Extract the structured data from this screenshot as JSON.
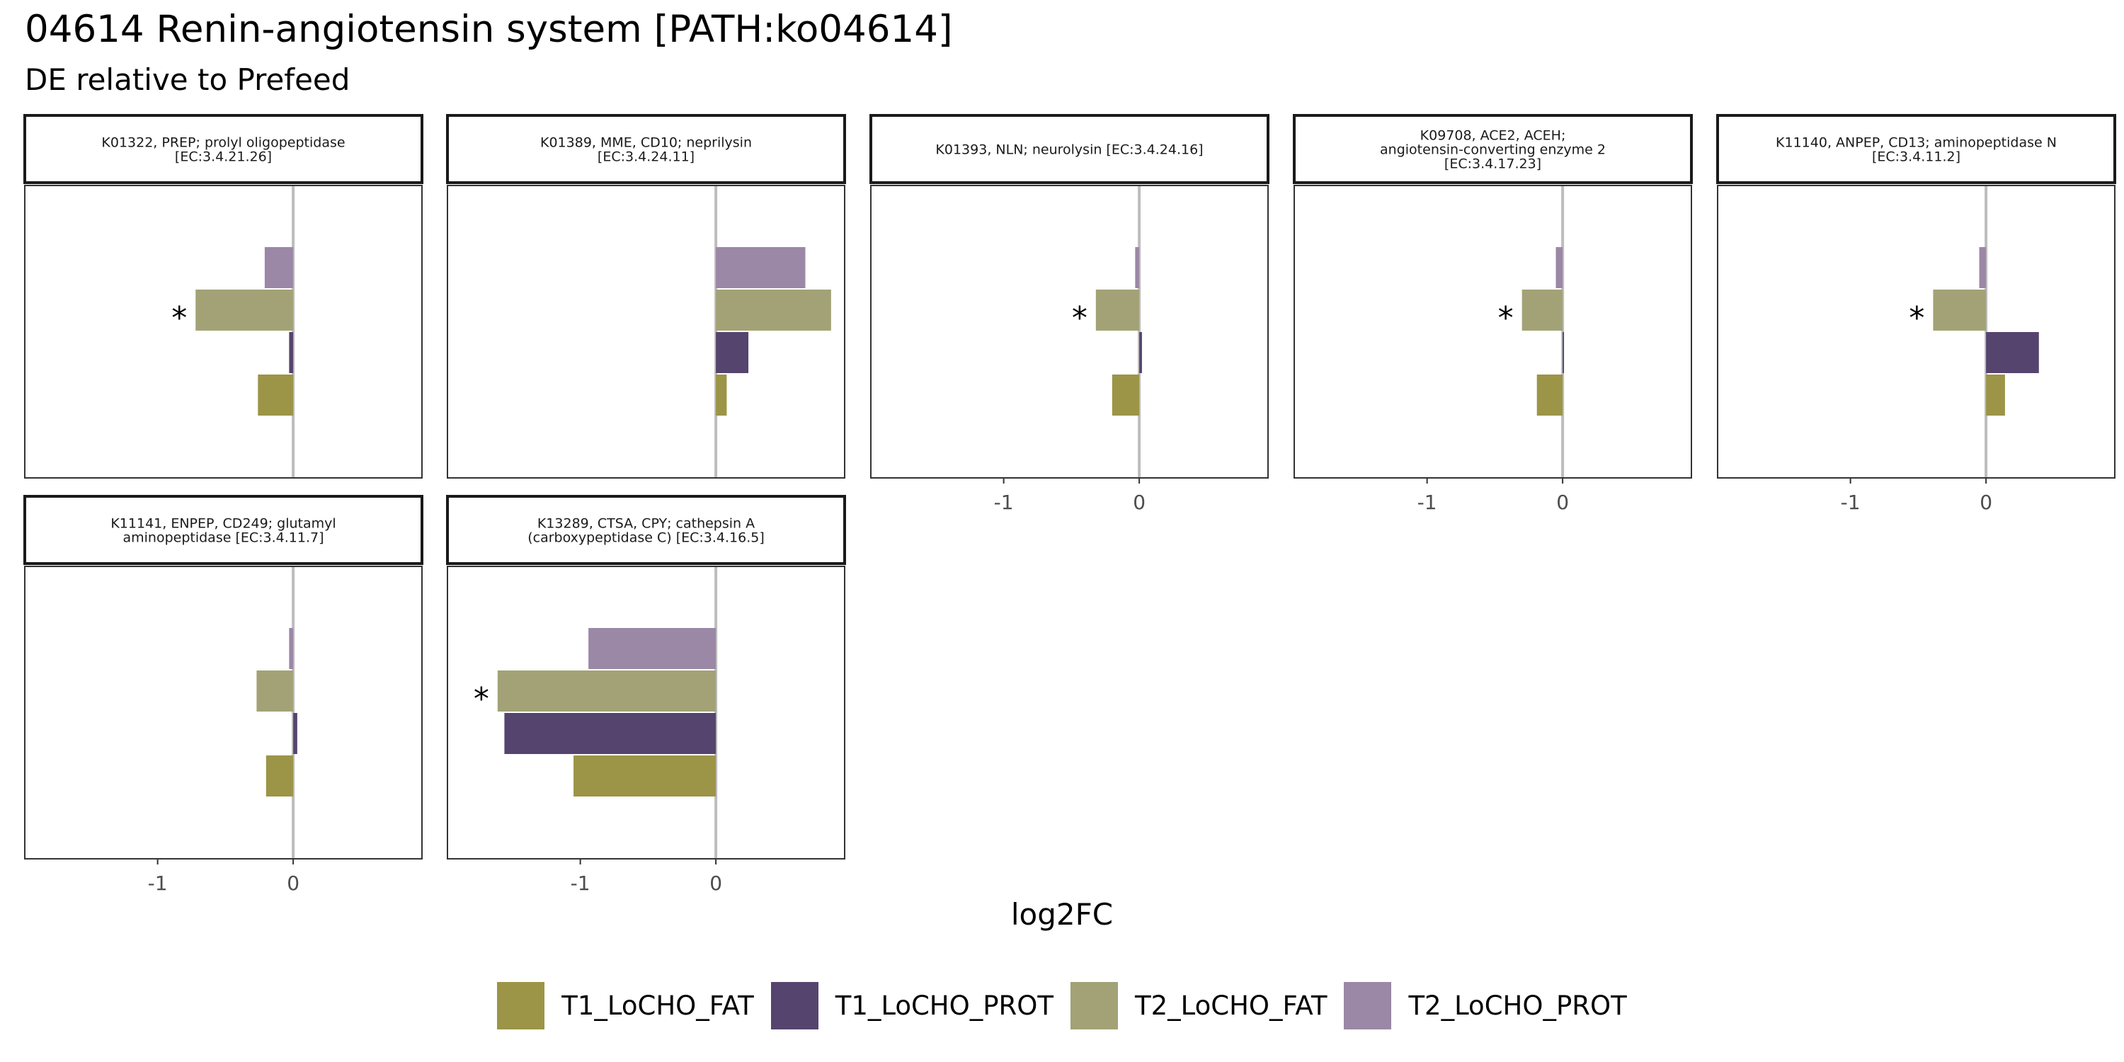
{
  "chart_data": {
    "type": "bar",
    "title": "04614 Renin-angiotensin system [PATH:ko04614]",
    "subtitle": "DE relative to Prefeed",
    "xlabel": "log2FC",
    "xlim": [
      -1.98,
      0.95
    ],
    "xticks": [
      -1,
      0
    ],
    "xtick_labels": [
      "-1",
      "0"
    ],
    "grid": false,
    "legend_position": "bottom",
    "series": [
      {
        "name": "T1_LoCHO_FAT",
        "color": "#9c9447"
      },
      {
        "name": "T1_LoCHO_PROT",
        "color": "#55446e"
      },
      {
        "name": "T2_LoCHO_FAT",
        "color": "#a2a276"
      },
      {
        "name": "T2_LoCHO_PROT",
        "color": "#9b87a6"
      }
    ],
    "panels": [
      {
        "strip": [
          "K01322, PREP; prolyl oligopeptidase",
          "[EC:3.4.21.26]"
        ],
        "values": [
          -0.26,
          -0.03,
          -0.72,
          -0.21
        ],
        "significant": [
          false,
          false,
          true,
          false
        ]
      },
      {
        "strip": [
          "K01389, MME, CD10; neprilysin",
          "[EC:3.4.24.11]"
        ],
        "values": [
          0.08,
          0.24,
          0.85,
          0.66
        ],
        "significant": [
          false,
          false,
          false,
          false
        ]
      },
      {
        "strip": [
          "K01393, NLN; neurolysin [EC:3.4.24.16]"
        ],
        "values": [
          -0.2,
          0.02,
          -0.32,
          -0.03
        ],
        "significant": [
          false,
          false,
          true,
          false
        ]
      },
      {
        "strip": [
          "K09708, ACE2, ACEH;",
          "angiotensin-converting enzyme 2",
          "[EC:3.4.17.23]"
        ],
        "values": [
          -0.19,
          0.01,
          -0.3,
          -0.05
        ],
        "significant": [
          false,
          false,
          true,
          false
        ]
      },
      {
        "strip": [
          "K11140, ANPEP, CD13; aminopeptidase N",
          "[EC:3.4.11.2]"
        ],
        "values": [
          0.14,
          0.39,
          -0.39,
          -0.05
        ],
        "significant": [
          false,
          false,
          true,
          false
        ]
      },
      {
        "strip": [
          "K11141, ENPEP, CD249; glutamyl",
          "aminopeptidase [EC:3.4.11.7]"
        ],
        "values": [
          -0.2,
          0.03,
          -0.27,
          -0.03
        ],
        "significant": [
          false,
          false,
          false,
          false
        ]
      },
      {
        "strip": [
          "K13289, CTSA, CPY; cathepsin A",
          "(carboxypeptidase C) [EC:3.4.16.5]"
        ],
        "values": [
          -1.05,
          -1.56,
          -1.61,
          -0.94
        ],
        "significant": [
          false,
          false,
          true,
          false
        ]
      }
    ],
    "significance_marker": "*"
  }
}
